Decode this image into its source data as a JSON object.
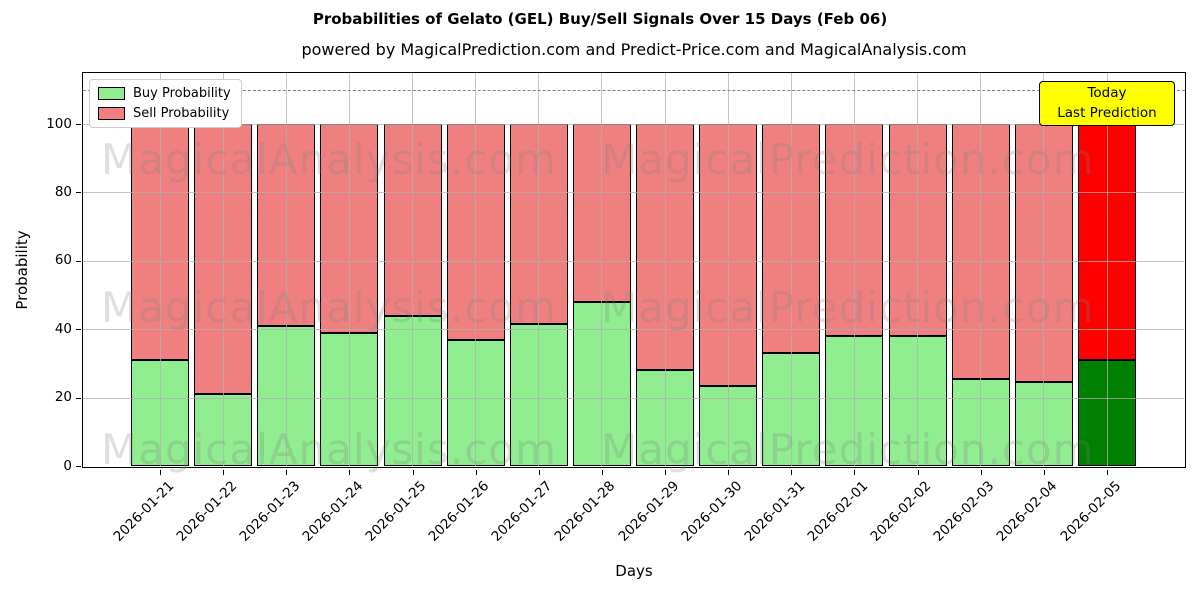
{
  "chart": {
    "title": "Probabilities of Gelato (GEL) Buy/Sell Signals Over 15 Days (Feb 06)",
    "subtitle": "powered by MagicalPrediction.com and Predict-Price.com and MagicalAnalysis.com",
    "xlabel": "Days",
    "ylabel": "Probability",
    "legend": {
      "buy_label": "Buy Probability",
      "sell_label": "Sell Probability"
    },
    "today_annotation": {
      "line1": "Today",
      "line2": "Last Prediction"
    },
    "colors": {
      "buy": "#90EE90",
      "sell": "#F08080",
      "today_buy": "#008000",
      "today_sell": "#FF0000",
      "annotation_bg": "#FFFF00",
      "gridline": "#b0b0b0",
      "dashed_line": "#7f7f7f"
    }
  },
  "chart_data": {
    "type": "bar",
    "stacked": true,
    "title": "Probabilities of Gelato (GEL) Buy/Sell Signals Over 15 Days (Feb 06)",
    "xlabel": "Days",
    "ylabel": "Probability",
    "categories": [
      "2026-01-21",
      "2026-01-22",
      "2026-01-23",
      "2026-01-24",
      "2026-01-25",
      "2026-01-26",
      "2026-01-27",
      "2026-01-28",
      "2026-01-29",
      "2026-01-30",
      "2026-01-31",
      "2026-02-01",
      "2026-02-02",
      "2026-02-03",
      "2026-02-04",
      "2026-02-05"
    ],
    "series": [
      {
        "name": "Buy Probability",
        "values": [
          31,
          21,
          41,
          39,
          44,
          37,
          41.5,
          48,
          28,
          23.5,
          33,
          38,
          38,
          25.5,
          24.5,
          31
        ]
      },
      {
        "name": "Sell Probability",
        "values": [
          69,
          79,
          59,
          61,
          56,
          63,
          58.5,
          52,
          72,
          76.5,
          67,
          62,
          62,
          74.5,
          75.5,
          69
        ]
      }
    ],
    "today_index": 15,
    "ylim": [
      0,
      115
    ],
    "yticks": [
      0,
      20,
      40,
      60,
      80,
      100
    ],
    "dashed_line_y": 110,
    "grid": true,
    "legend_position": "upper left",
    "watermarks": [
      "MagicalAnalysis.com",
      "MagicalPrediction.com"
    ]
  }
}
